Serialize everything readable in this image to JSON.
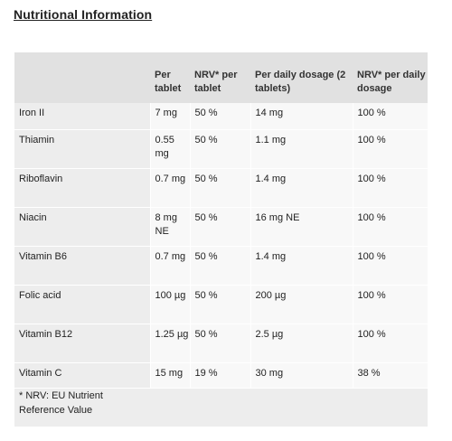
{
  "title": "Nutritional Information",
  "table": {
    "headers": [
      "",
      "Per tablet",
      "NRV* per tablet",
      "Per daily dosage (2 tablets)",
      "NRV* per daily dosage"
    ],
    "rows": [
      [
        "Iron II",
        "7 mg",
        "50 %",
        "14 mg",
        "100 %"
      ],
      [
        "Thiamin",
        "0.55 mg",
        "50 %",
        "1.1 mg",
        "100 %"
      ],
      [
        "Riboflavin",
        "0.7 mg",
        "50 %",
        "1.4 mg",
        "100 %"
      ],
      [
        "Niacin",
        "8 mg NE",
        "50 %",
        "16 mg NE",
        "100 %"
      ],
      [
        "Vitamin B6",
        "0.7 mg",
        "50 %",
        "1.4 mg",
        "100 %"
      ],
      [
        "Folic acid",
        "100 µg",
        "50 %",
        "200 µg",
        "100 %"
      ],
      [
        "Vitamin B12",
        "1.25 µg",
        "50 %",
        "2.5 µg",
        "100 %"
      ],
      [
        "Vitamin C",
        "15 mg",
        "19 %",
        "30 mg",
        "38 %"
      ]
    ]
  },
  "footnote": "* NRV: EU Nutrient Reference Value"
}
